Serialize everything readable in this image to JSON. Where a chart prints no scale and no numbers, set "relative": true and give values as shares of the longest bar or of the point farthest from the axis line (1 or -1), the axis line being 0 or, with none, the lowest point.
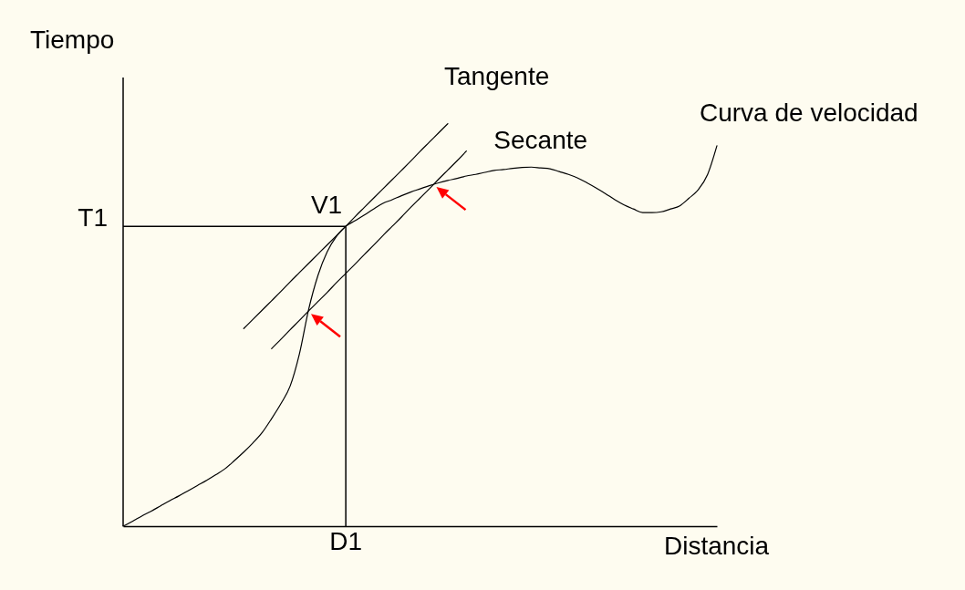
{
  "chart_data": {
    "type": "line",
    "relative": true,
    "xlabel": "Distancia",
    "ylabel": "Tiempo",
    "categories": [
      null,
      null,
      null,
      null,
      null,
      null,
      null,
      null,
      null,
      null,
      null,
      null,
      null,
      null,
      null,
      null,
      null,
      null,
      null,
      null,
      null,
      null,
      null,
      null,
      null,
      null,
      null,
      null,
      null,
      null,
      null,
      null,
      null,
      null,
      null,
      null,
      null,
      null,
      null,
      null,
      null,
      null,
      null,
      null,
      null,
      null,
      null,
      null,
      null,
      null,
      null,
      null,
      null,
      null,
      null,
      null,
      null,
      null,
      null,
      null,
      null,
      null,
      null,
      null,
      null
    ],
    "series": [
      {
        "name": "Curva de velocidad",
        "color": "#000000",
        "values": [
          0,
          0.012,
          0.025,
          0.037,
          0.05,
          0.063,
          0.075,
          0.088,
          0.101,
          0.114,
          0.128,
          0.143,
          0.163,
          0.184,
          0.207,
          0.233,
          0.267,
          0.304,
          0.348,
          0.428,
          0.539,
          0.623,
          0.682,
          0.72,
          0.745,
          0.759,
          0.773,
          0.788,
          0.802,
          0.811,
          0.821,
          0.83,
          0.838,
          0.846,
          0.853,
          0.859,
          0.864,
          0.87,
          0.874,
          0.879,
          0.884,
          0.886,
          0.889,
          0.891,
          0.892,
          0.89,
          0.888,
          0.881,
          0.874,
          0.865,
          0.853,
          0.84,
          0.826,
          0.811,
          0.798,
          0.788,
          0.779,
          0.779,
          0.781,
          0.788,
          0.796,
          0.815,
          0.836,
          0.874,
          0.945
        ]
      },
      {
        "name": "Tangente",
        "color": "#000000",
        "values": [
          null,
          null,
          null,
          null,
          null,
          null,
          null,
          null,
          null,
          null,
          null,
          null,
          null,
          0.491,
          0.514,
          0.537,
          0.56,
          0.583,
          0.607,
          0.63,
          0.653,
          0.676,
          0.699,
          0.722,
          0.745,
          0.769,
          0.792,
          0.815,
          0.838,
          0.861,
          0.884,
          0.907,
          0.931,
          0.954,
          0.977,
          1.0,
          null,
          null,
          null,
          null,
          null,
          null,
          null,
          null,
          null,
          null,
          null,
          null,
          null,
          null,
          null,
          null,
          null,
          null,
          null,
          null,
          null,
          null,
          null,
          null,
          null,
          null,
          null,
          null,
          null
        ]
      },
      {
        "name": "Secante",
        "color": "#000000",
        "values": [
          null,
          null,
          null,
          null,
          null,
          null,
          null,
          null,
          null,
          null,
          null,
          null,
          null,
          null,
          null,
          null,
          0.441,
          0.464,
          0.488,
          0.511,
          0.535,
          0.558,
          0.581,
          0.605,
          0.628,
          0.651,
          0.675,
          0.698,
          0.722,
          0.745,
          0.768,
          0.792,
          0.815,
          0.838,
          0.862,
          0.885,
          0.908,
          0.932,
          null,
          null,
          null,
          null,
          null,
          null,
          null,
          null,
          null,
          null,
          null,
          null,
          null,
          null,
          null,
          null,
          null,
          null,
          null,
          null,
          null,
          null,
          null,
          null,
          null,
          null,
          null
        ]
      }
    ],
    "ref_lines": [
      {
        "axis": "y",
        "value": 0.745,
        "label": "T1"
      }
    ],
    "annotations": [
      {
        "text": "V1",
        "y": 0.745
      },
      "D1"
    ]
  }
}
